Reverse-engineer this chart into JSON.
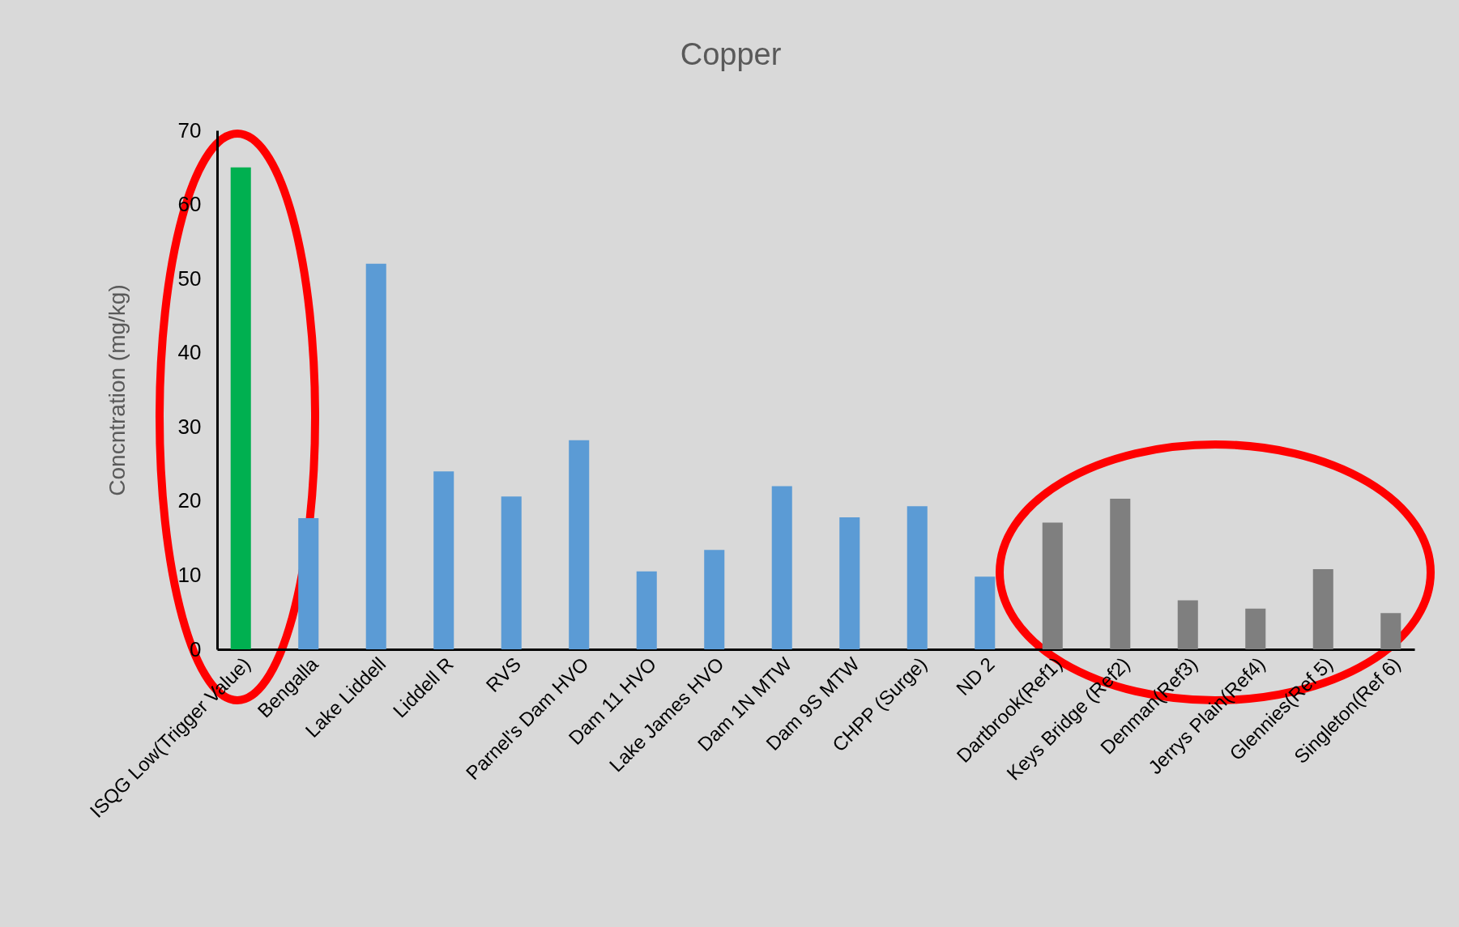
{
  "chart_data": {
    "type": "bar",
    "title": "Copper",
    "ylabel": "Concntration (mg/kg)",
    "categories": [
      "ISQG Low(Trigger Value)",
      "Bengalla",
      "Lake Liddell",
      "Liddell R",
      "RVS",
      "Parnel's Dam HVO",
      "Dam 11 HVO",
      "Lake James HVO",
      "Dam 1N MTW",
      "Dam 9S MTW",
      "CHPP (Surge)",
      "ND 2",
      "Dartbrook(Ref1)",
      "Keys Bridge (Ref2)",
      "Denman(Ref3)",
      "Jerrys Plain(Ref4)",
      "Glennies(Ref 5)",
      "Singleton(Ref 6)"
    ],
    "values": [
      65,
      17.7,
      52,
      24,
      20.6,
      28.2,
      10.5,
      13.4,
      22,
      17.8,
      19.3,
      9.8,
      17.1,
      20.3,
      6.6,
      5.5,
      10.8,
      4.9
    ],
    "colors": [
      "#00b050",
      "#5b9bd5",
      "#5b9bd5",
      "#5b9bd5",
      "#5b9bd5",
      "#5b9bd5",
      "#5b9bd5",
      "#5b9bd5",
      "#5b9bd5",
      "#5b9bd5",
      "#5b9bd5",
      "#5b9bd5",
      "#7f7f7f",
      "#7f7f7f",
      "#7f7f7f",
      "#7f7f7f",
      "#7f7f7f",
      "#7f7f7f"
    ],
    "ylim": [
      0,
      70
    ],
    "yticks": [
      0,
      10,
      20,
      30,
      40,
      50,
      60,
      70
    ],
    "legend": false
  }
}
